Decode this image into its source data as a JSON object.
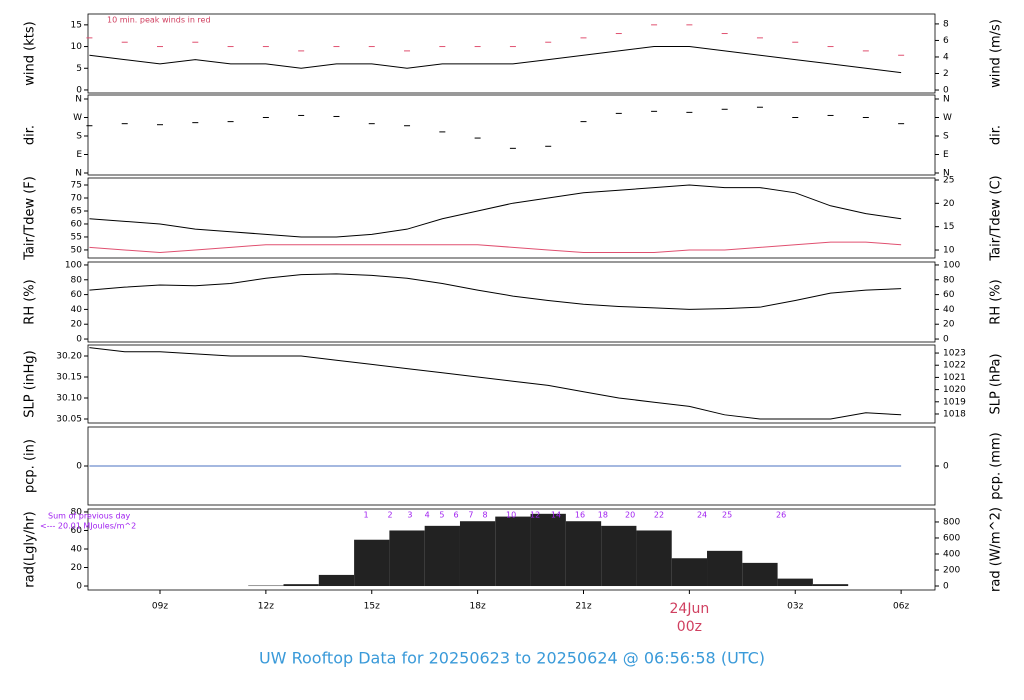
{
  "title": "UW Rooftop Data for 20250623  to  20250624 @ 06:56:58  (UTC)",
  "chart_data": [
    {
      "type": "line",
      "ylabel": "wind (kts)",
      "y2label": "wind (m/s)",
      "annotation": "10 min. peak winds in red",
      "x": [
        7,
        8,
        9,
        10,
        11,
        12,
        13,
        14,
        15,
        16,
        17,
        18,
        19,
        20,
        21,
        22,
        23,
        24,
        25,
        26,
        27,
        28,
        29,
        30
      ],
      "series": [
        {
          "color": "#000000",
          "style": "line",
          "values": [
            8,
            7,
            6,
            7,
            6,
            6,
            5,
            6,
            6,
            5,
            6,
            6,
            6,
            7,
            8,
            9,
            10,
            10,
            9,
            8,
            7,
            6,
            5,
            4
          ]
        },
        {
          "color": "#e05070",
          "style": "dash",
          "values": [
            12,
            11,
            10,
            11,
            10,
            10,
            9,
            10,
            10,
            9,
            10,
            10,
            10,
            11,
            12,
            13,
            15,
            15,
            13,
            12,
            11,
            10,
            9,
            8
          ]
        }
      ],
      "ylim": [
        -0.7,
        17.5
      ],
      "yticks": [
        0,
        5,
        10,
        15
      ],
      "y2lim": [
        -0.36,
        9.2
      ],
      "y2ticks": [
        0,
        2,
        4,
        6,
        8
      ]
    },
    {
      "type": "scatter",
      "ylabel": "dir.",
      "y2label": "dir.",
      "x": [
        7,
        8,
        9,
        10,
        11,
        12,
        13,
        14,
        15,
        16,
        17,
        18,
        19,
        20,
        21,
        22,
        23,
        24,
        25,
        26,
        27,
        28,
        29,
        30
      ],
      "series": [
        {
          "color": "#000000",
          "style": "dash",
          "values": [
            230,
            240,
            235,
            245,
            250,
            270,
            280,
            275,
            240,
            230,
            200,
            170,
            120,
            130,
            250,
            290,
            300,
            295,
            310,
            320,
            270,
            280,
            270,
            240
          ]
        }
      ],
      "ylim": [
        -9.7,
        379.5
      ],
      "yticks": [
        {
          "value": 0,
          "label": "N"
        },
        {
          "value": 90,
          "label": "E"
        },
        {
          "value": 180,
          "label": "S"
        },
        {
          "value": 270,
          "label": "W"
        },
        {
          "value": 360,
          "label": "N"
        }
      ],
      "y2lim": [
        -9.7,
        379.5
      ],
      "y2ticks": [
        {
          "value": 0,
          "label": "N"
        },
        {
          "value": 90,
          "label": "E"
        },
        {
          "value": 180,
          "label": "S"
        },
        {
          "value": 270,
          "label": "W"
        },
        {
          "value": 360,
          "label": "N"
        }
      ]
    },
    {
      "type": "line",
      "ylabel": "Tair/Tdew (F)",
      "y2label": "Tair/Tdew (C)",
      "x": [
        7,
        8,
        9,
        10,
        11,
        12,
        13,
        14,
        15,
        16,
        17,
        18,
        19,
        20,
        21,
        22,
        23,
        24,
        25,
        26,
        27,
        28,
        29,
        30
      ],
      "series": [
        {
          "color": "#000000",
          "style": "line",
          "values": [
            62,
            61,
            60,
            58,
            57,
            56,
            55,
            55,
            56,
            58,
            62,
            65,
            68,
            70,
            72,
            73,
            74,
            75,
            74,
            74,
            72,
            67,
            64,
            62
          ]
        },
        {
          "color": "#e05070",
          "style": "line",
          "values": [
            51,
            50,
            49,
            50,
            51,
            52,
            52,
            52,
            52,
            52,
            52,
            52,
            51,
            50,
            49,
            49,
            49,
            50,
            50,
            51,
            52,
            53,
            53,
            52
          ]
        }
      ],
      "ylim": [
        46.9,
        77.7
      ],
      "yticks": [
        50,
        55,
        60,
        65,
        70,
        75
      ],
      "y2lim": [
        8.29,
        25.43
      ],
      "y2ticks": [
        10,
        15,
        20,
        25
      ]
    },
    {
      "type": "line",
      "ylabel": "RH (%)",
      "y2label": "RH (%)",
      "x": [
        7,
        8,
        9,
        10,
        11,
        12,
        13,
        14,
        15,
        16,
        17,
        18,
        19,
        20,
        21,
        22,
        23,
        24,
        25,
        26,
        27,
        28,
        29,
        30
      ],
      "series": [
        {
          "color": "#000000",
          "style": "line",
          "values": [
            66,
            70,
            73,
            72,
            75,
            82,
            87,
            88,
            86,
            82,
            75,
            66,
            58,
            52,
            47,
            44,
            42,
            40,
            41,
            43,
            52,
            62,
            66,
            68
          ]
        }
      ],
      "ylim": [
        -4,
        104
      ],
      "yticks": [
        0,
        20,
        40,
        60,
        80,
        100
      ],
      "y2lim": [
        -4,
        104
      ],
      "y2ticks": [
        0,
        20,
        40,
        60,
        80,
        100
      ]
    },
    {
      "type": "line",
      "ylabel": "SLP (inHg)",
      "y2label": "SLP (hPa)",
      "x": [
        7,
        8,
        9,
        10,
        11,
        12,
        13,
        14,
        15,
        16,
        17,
        18,
        19,
        20,
        21,
        22,
        23,
        24,
        25,
        26,
        27,
        28,
        29,
        30
      ],
      "series": [
        {
          "color": "#000000",
          "style": "line",
          "values": [
            30.22,
            30.21,
            30.21,
            30.205,
            30.2,
            30.2,
            30.2,
            30.19,
            30.18,
            30.17,
            30.16,
            30.15,
            30.14,
            30.13,
            30.115,
            30.1,
            30.09,
            30.08,
            30.06,
            30.05,
            30.05,
            30.05,
            30.065,
            30.06
          ]
        }
      ],
      "ylim": [
        30.0405,
        30.2262
      ],
      "yticks": [
        30.05,
        {
          "value": 30.1,
          "label": "30.10"
        },
        30.15,
        {
          "value": 30.2,
          "label": "30.20"
        }
      ],
      "y2lim": [
        1017.26,
        1023.66
      ],
      "y2ticks": [
        1018,
        1019,
        1020,
        1021,
        1022,
        1023
      ]
    },
    {
      "type": "line",
      "ylabel": "pcp. (in)",
      "y2label": "pcp. (mm)",
      "x": [
        7,
        8,
        9,
        10,
        11,
        12,
        13,
        14,
        15,
        16,
        17,
        18,
        19,
        20,
        21,
        22,
        23,
        24,
        25,
        26,
        27,
        28,
        29,
        30
      ],
      "series": [
        {
          "color": "#4a70c0",
          "style": "line",
          "values": [
            0,
            0,
            0,
            0,
            0,
            0,
            0,
            0,
            0,
            0,
            0,
            0,
            0,
            0,
            0,
            0,
            0,
            0,
            0,
            0,
            0,
            0,
            0,
            0
          ]
        }
      ],
      "ylim": [
        -0.5,
        0.5
      ],
      "yticks": [
        0
      ],
      "y2lim": [
        -0.5,
        0.5
      ],
      "y2ticks": [
        0
      ]
    },
    {
      "type": "bar",
      "ylabel": "rad(Lgly/hr)",
      "y2label": "rad (W/m^2)",
      "annotations": [
        "Sum of previous day",
        "<--- 20.01 MJoules/m^2",
        "00z"
      ],
      "hour_labels": [
        {
          "x": 14.84,
          "label": "1"
        },
        {
          "x": 15.52,
          "label": "2"
        },
        {
          "x": 16.08,
          "label": "3"
        },
        {
          "x": 16.57,
          "label": "4"
        },
        {
          "x": 16.99,
          "label": "5"
        },
        {
          "x": 17.39,
          "label": "6"
        },
        {
          "x": 17.81,
          "label": "7"
        },
        {
          "x": 18.21,
          "label": "8"
        },
        {
          "x": 18.95,
          "label": "10"
        },
        {
          "x": 19.63,
          "label": "12"
        },
        {
          "x": 20.22,
          "label": "14"
        },
        {
          "x": 20.9,
          "label": "16"
        },
        {
          "x": 21.55,
          "label": "18"
        },
        {
          "x": 22.32,
          "label": "20"
        },
        {
          "x": 23.14,
          "label": "22"
        },
        {
          "x": 24.36,
          "label": "24"
        },
        {
          "x": 25.07,
          "label": "25"
        },
        {
          "x": 26.6,
          "label": "26"
        }
      ],
      "x": [
        7,
        8,
        9,
        10,
        11,
        12,
        13,
        14,
        15,
        16,
        17,
        18,
        19,
        20,
        21,
        22,
        23,
        24,
        25,
        26,
        27,
        28,
        29,
        30
      ],
      "series": [
        {
          "color": "#222222",
          "style": "bars",
          "values": [
            0,
            0,
            0,
            0,
            0,
            0.5,
            2,
            12,
            50,
            60,
            65,
            70,
            75,
            78,
            70,
            65,
            60,
            30,
            38,
            25,
            8,
            2,
            0,
            0
          ]
        }
      ],
      "ylim": [
        -4.3,
        83.2
      ],
      "yticks": [
        0,
        20,
        40,
        60,
        80
      ],
      "y2lim": [
        -50,
        962
      ],
      "y2ticks": [
        0,
        200,
        400,
        600,
        800
      ],
      "xlim": [
        6.96,
        30.96
      ],
      "xticks": [
        {
          "value": 9,
          "label": "09z"
        },
        {
          "value": 12,
          "label": "12z"
        },
        {
          "value": 15,
          "label": "15z"
        },
        {
          "value": 18,
          "label": "18z"
        },
        {
          "value": 21,
          "label": "21z"
        },
        {
          "value": 24,
          "label": "24Jun",
          "color": "#d04060"
        },
        {
          "value": 27,
          "label": "03z"
        },
        {
          "value": 30,
          "label": "06z"
        }
      ]
    }
  ]
}
